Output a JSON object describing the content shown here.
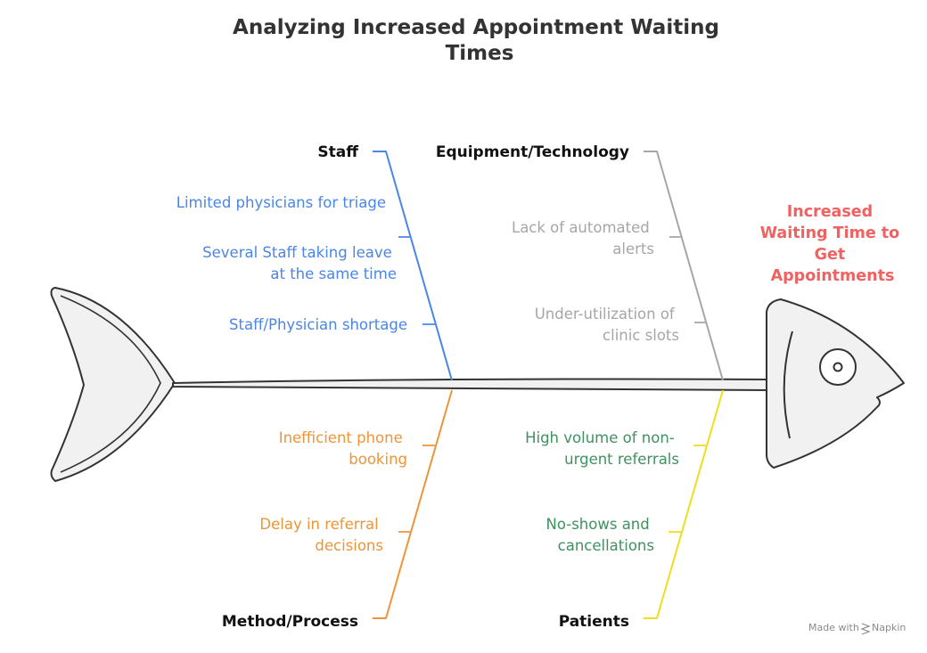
{
  "title": [
    "Analyzing Increased Appointment Waiting",
    "Times"
  ],
  "effect": [
    "Increased",
    "Waiting Time to",
    "Get",
    "Appointments"
  ],
  "categories": {
    "staff": {
      "label": "Staff",
      "color": "#4a86e8",
      "causes": [
        [
          "Limited physicians for triage"
        ],
        [
          "Several Staff taking leave",
          "at the same time"
        ],
        [
          "Staff/Physician shortage"
        ]
      ]
    },
    "equipment": {
      "label": "Equipment/Technology",
      "color": "#a6a6a6",
      "causes": [
        [
          "Lack of automated",
          "alerts"
        ],
        [
          "Under-utilization of",
          "clinic slots"
        ]
      ]
    },
    "method": {
      "label": "Method/Process",
      "color": "#ef9439",
      "causes": [
        [
          "Inefficient phone",
          "booking"
        ],
        [
          "Delay in referral",
          "decisions"
        ]
      ]
    },
    "patients": {
      "label": "Patients",
      "color": "#f1dd1f",
      "causes": [
        [
          "High volume of non-",
          "urgent referrals"
        ],
        [
          "No-shows and",
          "cancellations"
        ]
      ]
    }
  },
  "patients_text_color": "#3f9160",
  "credit": "Made with",
  "credit_brand": "Napkin"
}
